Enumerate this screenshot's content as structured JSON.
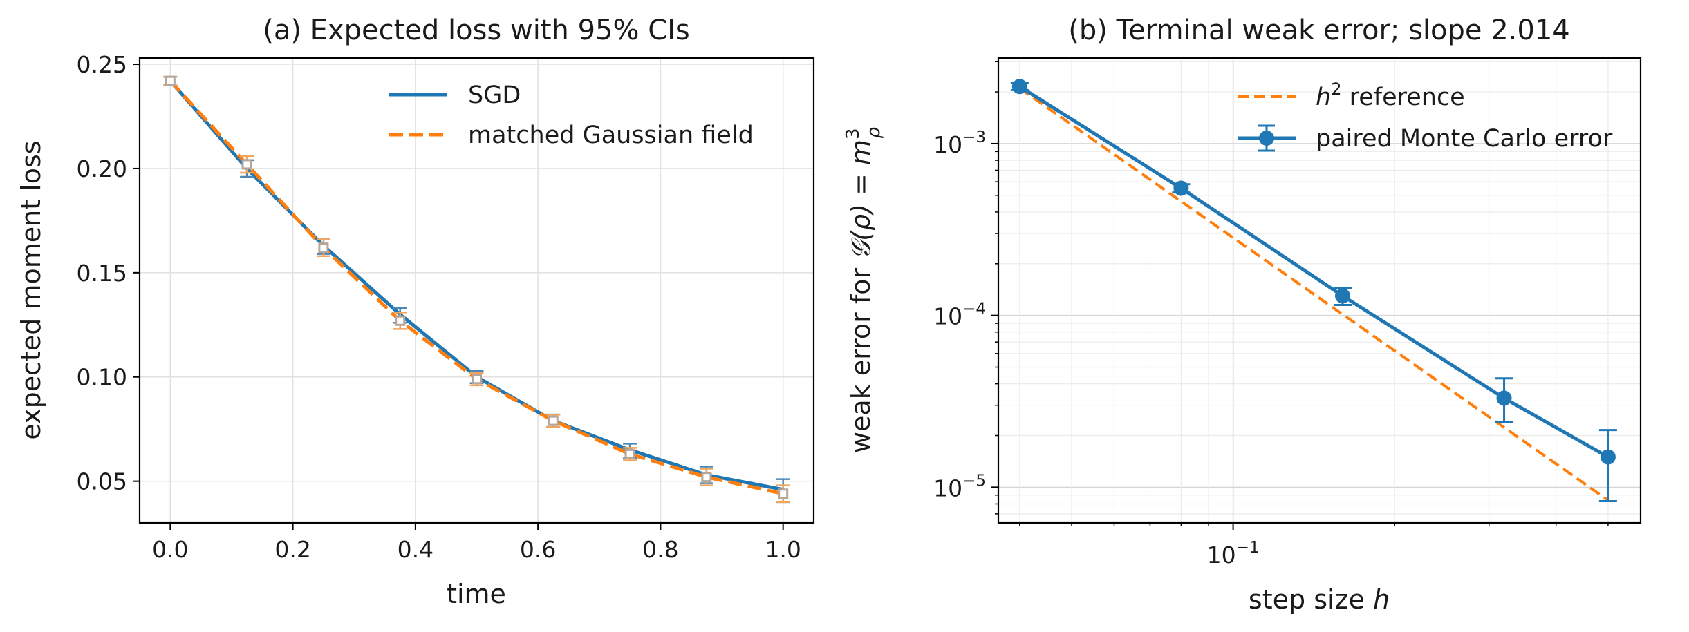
{
  "chart_data": [
    {
      "type": "line",
      "title": "(a) Expected loss with 95% CIs",
      "xlabel": "time",
      "ylabel": "expected moment loss",
      "xlim": [
        -0.05,
        1.05
      ],
      "ylim": [
        0.03,
        0.253
      ],
      "xticks": [
        0.0,
        0.2,
        0.4,
        0.6,
        0.8,
        1.0
      ],
      "xtick_labels": [
        "0.0",
        "0.2",
        "0.4",
        "0.6",
        "0.8",
        "1.0"
      ],
      "yticks": [
        0.05,
        0.1,
        0.15,
        0.2,
        0.25
      ],
      "ytick_labels": [
        "0.05",
        "0.10",
        "0.15",
        "0.20",
        "0.25"
      ],
      "grid": true,
      "legend_position": "top-right",
      "x": [
        0.0,
        0.125,
        0.25,
        0.375,
        0.5,
        0.625,
        0.75,
        0.875,
        1.0
      ],
      "series": [
        {
          "name": "SGD",
          "style": "solid",
          "color": "#1f77b4",
          "values": [
            0.242,
            0.2,
            0.163,
            0.13,
            0.1,
            0.079,
            0.065,
            0.053,
            0.046
          ],
          "ci_low": [
            0.24,
            0.196,
            0.159,
            0.126,
            0.097,
            0.076,
            0.061,
            0.049,
            0.04
          ],
          "ci_high": [
            0.244,
            0.204,
            0.166,
            0.133,
            0.103,
            0.082,
            0.068,
            0.057,
            0.051
          ]
        },
        {
          "name": "matched Gaussian field",
          "style": "dashed",
          "color": "#ff7f0e",
          "values": [
            0.242,
            0.202,
            0.162,
            0.127,
            0.099,
            0.079,
            0.063,
            0.052,
            0.044
          ],
          "ci_low": [
            0.24,
            0.198,
            0.158,
            0.123,
            0.096,
            0.076,
            0.06,
            0.048,
            0.04
          ],
          "ci_high": [
            0.244,
            0.206,
            0.166,
            0.131,
            0.102,
            0.082,
            0.066,
            0.056,
            0.048
          ]
        }
      ]
    },
    {
      "type": "line",
      "title": "(b) Terminal weak error; slope 2.014",
      "xlabel_prefix": "step size ",
      "xlabel_var": "h",
      "ylabel_prefix": "weak error for ",
      "ylabel_math": "𝒢(ρ) = m",
      "ylabel_sup": "3",
      "ylabel_sub": "ρ",
      "xscale": "log",
      "yscale": "log",
      "xlim": [
        0.0365,
        0.575
      ],
      "ylim": [
        6.2e-06,
        0.00315
      ],
      "xticks": [
        0.1
      ],
      "xtick_labels": [
        {
          "base": "10",
          "exp": "−1"
        }
      ],
      "yticks": [
        1e-05,
        0.0001,
        0.001
      ],
      "ytick_labels": [
        {
          "base": "10",
          "exp": "−5"
        },
        {
          "base": "10",
          "exp": "−4"
        },
        {
          "base": "10",
          "exp": "−3"
        }
      ],
      "grid": true,
      "legend_position": "top-right",
      "series": [
        {
          "name": "h² reference",
          "name_var": "h",
          "name_sup": "2",
          "name_rest": " reference",
          "style": "dashed",
          "color": "#ff7f0e",
          "x": [
            0.04,
            0.5
          ],
          "values": [
            0.0021,
            8.4e-06
          ]
        },
        {
          "name": "paired Monte Carlo error",
          "style": "solid-marker",
          "color": "#1f77b4",
          "x": [
            0.04,
            0.08,
            0.16,
            0.32,
            0.5
          ],
          "values": [
            0.00215,
            0.00055,
            0.00013,
            3.3e-05,
            1.5e-05
          ],
          "err_low": [
            0.00205,
            0.00052,
            0.000115,
            2.4e-05,
            8.3e-06
          ],
          "err_high": [
            0.00225,
            0.00058,
            0.000145,
            4.3e-05,
            2.15e-05
          ]
        }
      ]
    }
  ]
}
